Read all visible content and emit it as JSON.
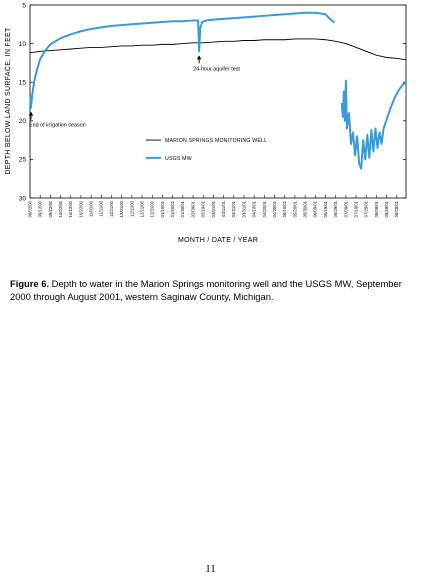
{
  "caption": {
    "label": "Figure 6.",
    "text": "  Depth to water in the Marion Springs monitoring well and the USGS MW, September 2000 through August 2001, western Saginaw County, Michigan."
  },
  "page_number": "11",
  "colors": {
    "marion": "#000000",
    "usgs": "#3b9ad6"
  },
  "chart_data": {
    "type": "line",
    "title": "",
    "xlabel": "MONTH / DATE / YEAR",
    "ylabel": "DEPTH BELOW LAND SURFACE, IN FEET",
    "x_type": "date",
    "x_range": [
      "2000-09-02",
      "2001-09-06"
    ],
    "ylim": [
      30,
      5
    ],
    "y_reversed": true,
    "y_ticks": [
      5,
      10,
      15,
      20,
      25,
      30
    ],
    "grid": false,
    "legend_position": "lower-middle",
    "x_tick_labels": [
      {
        "date": "2000-09-02",
        "label": "09/02/00"
      },
      {
        "date": "2000-09-12",
        "label": "09/12/00"
      },
      {
        "date": "2000-09-22",
        "label": "09/22/00"
      },
      {
        "date": "2000-10-02",
        "label": "10/02/00"
      },
      {
        "date": "2000-10-12",
        "label": "10/12/00"
      },
      {
        "date": "2000-10-22",
        "label": "10/22/00"
      },
      {
        "date": "2000-11-01",
        "label": "11/01/00"
      },
      {
        "date": "2000-11-11",
        "label": "11/11/00"
      },
      {
        "date": "2000-11-21",
        "label": "11/21/00"
      },
      {
        "date": "2000-12-01",
        "label": "12/01/00"
      },
      {
        "date": "2000-12-11",
        "label": "12/11/00"
      },
      {
        "date": "2000-12-21",
        "label": "12/21/00"
      },
      {
        "date": "2000-12-31",
        "label": "12/31/00"
      },
      {
        "date": "2001-01-10",
        "label": "01/10/01"
      },
      {
        "date": "2001-01-20",
        "label": "01/20/01"
      },
      {
        "date": "2001-01-30",
        "label": "01/30/01"
      },
      {
        "date": "2001-02-09",
        "label": "02/09/01"
      },
      {
        "date": "2001-02-19",
        "label": "02/19/01"
      },
      {
        "date": "2001-03-01",
        "label": "03/01/01"
      },
      {
        "date": "2001-03-11",
        "label": "03/11/01"
      },
      {
        "date": "2001-03-21",
        "label": "03/21/01"
      },
      {
        "date": "2001-03-31",
        "label": "03/31/01"
      },
      {
        "date": "2001-04-10",
        "label": "04/10/01"
      },
      {
        "date": "2001-04-20",
        "label": "04/20/01"
      },
      {
        "date": "2001-04-30",
        "label": "04/30/01"
      },
      {
        "date": "2001-05-10",
        "label": "05/10/01"
      },
      {
        "date": "2001-05-20",
        "label": "05/20/01"
      },
      {
        "date": "2001-05-30",
        "label": "05/30/01"
      },
      {
        "date": "2001-06-09",
        "label": "06/09/01"
      },
      {
        "date": "2001-06-19",
        "label": "06/19/01"
      },
      {
        "date": "2001-06-29",
        "label": "06/29/01"
      },
      {
        "date": "2001-07-09",
        "label": "07/09/01"
      },
      {
        "date": "2001-07-19",
        "label": "07/19/01"
      },
      {
        "date": "2001-07-29",
        "label": "07/29/01"
      },
      {
        "date": "2001-08-08",
        "label": "08/08/01"
      },
      {
        "date": "2001-08-18",
        "label": "08/18/01"
      },
      {
        "date": "2001-08-28",
        "label": "08/28/01"
      }
    ],
    "series": [
      {
        "name": "MARION SPRINGS MONITORING WELL",
        "color": "#000000",
        "style": "thin-line",
        "segments": [
          [
            [
              "2000-09-02",
              11.2
            ],
            [
              "2000-09-12",
              11.0
            ],
            [
              "2000-09-22",
              10.9
            ],
            [
              "2000-10-02",
              10.8
            ],
            [
              "2000-10-12",
              10.7
            ],
            [
              "2000-10-22",
              10.6
            ],
            [
              "2000-11-01",
              10.5
            ],
            [
              "2000-11-11",
              10.5
            ],
            [
              "2000-11-21",
              10.4
            ],
            [
              "2000-12-01",
              10.3
            ],
            [
              "2000-12-11",
              10.3
            ],
            [
              "2000-12-21",
              10.2
            ],
            [
              "2000-12-31",
              10.2
            ],
            [
              "2001-01-10",
              10.1
            ],
            [
              "2001-01-20",
              10.1
            ],
            [
              "2001-01-30",
              10.0
            ],
            [
              "2001-02-09",
              9.9
            ],
            [
              "2001-02-19",
              9.9
            ],
            [
              "2001-03-01",
              9.8
            ],
            [
              "2001-03-11",
              9.7
            ],
            [
              "2001-03-21",
              9.7
            ],
            [
              "2001-03-31",
              9.6
            ],
            [
              "2001-04-10",
              9.6
            ],
            [
              "2001-04-20",
              9.5
            ],
            [
              "2001-04-30",
              9.5
            ],
            [
              "2001-05-10",
              9.5
            ],
            [
              "2001-05-20",
              9.4
            ],
            [
              "2001-05-30",
              9.4
            ],
            [
              "2001-06-09",
              9.4
            ],
            [
              "2001-06-19",
              9.5
            ],
            [
              "2001-06-29",
              9.7
            ],
            [
              "2001-07-09",
              10.0
            ],
            [
              "2001-07-19",
              10.5
            ],
            [
              "2001-07-29",
              11.0
            ],
            [
              "2001-08-08",
              11.5
            ],
            [
              "2001-08-18",
              11.8
            ],
            [
              "2001-08-28",
              11.9
            ],
            [
              "2001-09-06",
              12.1
            ]
          ]
        ]
      },
      {
        "name": "USGS MW",
        "color": "#3b9ad6",
        "style": "thick-line",
        "segments": [
          [
            [
              "2000-09-02",
              16.5
            ],
            [
              "2000-09-03",
              18.3
            ],
            [
              "2000-09-04",
              16.8
            ],
            [
              "2000-09-06",
              15.0
            ],
            [
              "2000-09-09",
              13.3
            ],
            [
              "2000-09-12",
              12.0
            ],
            [
              "2000-09-17",
              10.9
            ],
            [
              "2000-09-22",
              10.1
            ],
            [
              "2000-10-02",
              9.3
            ],
            [
              "2000-10-12",
              8.8
            ],
            [
              "2000-10-22",
              8.4
            ],
            [
              "2000-11-01",
              8.1
            ],
            [
              "2000-11-11",
              7.9
            ],
            [
              "2000-11-21",
              7.7
            ],
            [
              "2000-12-01",
              7.6
            ],
            [
              "2000-12-11",
              7.5
            ],
            [
              "2000-12-21",
              7.4
            ],
            [
              "2000-12-31",
              7.3
            ],
            [
              "2001-01-10",
              7.2
            ],
            [
              "2001-01-20",
              7.1
            ],
            [
              "2001-01-30",
              7.1
            ],
            [
              "2001-02-09",
              7.0
            ],
            [
              "2001-02-14",
              7.0
            ],
            [
              "2001-02-15",
              11.0
            ],
            [
              "2001-02-16",
              8.0
            ],
            [
              "2001-02-18",
              7.2
            ],
            [
              "2001-02-22",
              7.0
            ],
            [
              "2001-03-01",
              6.9
            ],
            [
              "2001-03-11",
              6.8
            ],
            [
              "2001-03-21",
              6.7
            ],
            [
              "2001-03-31",
              6.6
            ],
            [
              "2001-04-10",
              6.5
            ],
            [
              "2001-04-20",
              6.4
            ],
            [
              "2001-04-30",
              6.3
            ],
            [
              "2001-05-10",
              6.2
            ],
            [
              "2001-05-20",
              6.1
            ],
            [
              "2001-05-30",
              6.0
            ],
            [
              "2001-06-09",
              6.0
            ],
            [
              "2001-06-19",
              6.2
            ],
            [
              "2001-06-24",
              6.9
            ],
            [
              "2001-06-27",
              7.2
            ]
          ],
          [
            [
              "2001-07-05",
              17.8
            ],
            [
              "2001-07-06",
              19.5
            ],
            [
              "2001-07-07",
              16.2
            ],
            [
              "2001-07-08",
              20.0
            ],
            [
              "2001-07-09",
              14.8
            ],
            [
              "2001-07-10",
              21.0
            ],
            [
              "2001-07-12",
              19.0
            ],
            [
              "2001-07-14",
              23.0
            ],
            [
              "2001-07-16",
              21.5
            ],
            [
              "2001-07-18",
              24.5
            ],
            [
              "2001-07-20",
              22.0
            ],
            [
              "2001-07-22",
              25.5
            ],
            [
              "2001-07-24",
              26.2
            ],
            [
              "2001-07-26",
              22.5
            ],
            [
              "2001-07-28",
              25.0
            ],
            [
              "2001-07-30",
              21.8
            ],
            [
              "2001-08-01",
              24.8
            ],
            [
              "2001-08-03",
              21.2
            ],
            [
              "2001-08-05",
              24.0
            ],
            [
              "2001-08-07",
              21.0
            ],
            [
              "2001-08-09",
              23.5
            ],
            [
              "2001-08-11",
              21.5
            ],
            [
              "2001-08-13",
              23.0
            ],
            [
              "2001-08-15",
              21.0
            ],
            [
              "2001-08-18",
              19.8
            ],
            [
              "2001-08-22",
              18.3
            ],
            [
              "2001-08-26",
              17.0
            ],
            [
              "2001-08-30",
              16.0
            ],
            [
              "2001-09-03",
              15.3
            ],
            [
              "2001-09-06",
              15.0
            ]
          ]
        ]
      }
    ],
    "annotations": [
      {
        "text": "End of irrigation season",
        "date": "2000-09-03",
        "y": 18.3
      },
      {
        "text": "24-hour aquifer test",
        "date": "2001-02-15",
        "y": 11.0
      }
    ]
  }
}
